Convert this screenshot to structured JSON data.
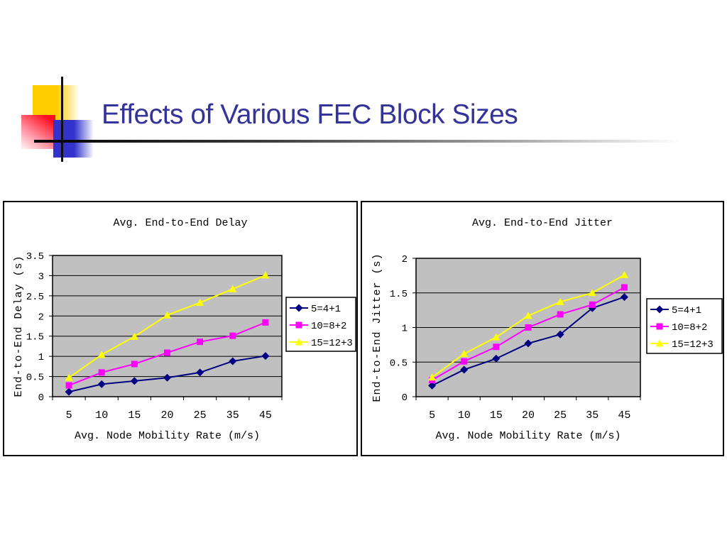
{
  "slide": {
    "title": "Effects of Various FEC Block Sizes",
    "title_color": "#333399"
  },
  "decoration": {
    "logo_yellow": "#FFCC00",
    "logo_red": "#FF1020",
    "logo_blue": "#3333CC",
    "rule_gradient_start": "#000000",
    "rule_gradient_end": "#ffffff"
  },
  "chart_data": [
    {
      "type": "line",
      "title": "Avg. End-to-End Delay",
      "xlabel": "Avg. Node Mobility Rate (m/s)",
      "ylabel": "End-to-End Delay (s)",
      "categories": [
        "5",
        "10",
        "15",
        "20",
        "25",
        "35",
        "45"
      ],
      "ylim": [
        0,
        3.5
      ],
      "yticks": [
        "0",
        "0.5",
        "1",
        "1.5",
        "2",
        "2.5",
        "3",
        "3.5"
      ],
      "grid": true,
      "plot_bg": "#C0C0C0",
      "legend_position": "right",
      "series": [
        {
          "name": "5=4+1",
          "color": "#000080",
          "marker": "diamond",
          "values": [
            0.12,
            0.31,
            0.39,
            0.47,
            0.6,
            0.88,
            1.01
          ]
        },
        {
          "name": "10=8+2",
          "color": "#FF00FF",
          "marker": "square",
          "values": [
            0.28,
            0.6,
            0.81,
            1.09,
            1.36,
            1.51,
            1.84
          ]
        },
        {
          "name": "15=12+3",
          "color": "#FFFF00",
          "marker": "triangle",
          "values": [
            0.47,
            1.04,
            1.49,
            2.02,
            2.33,
            2.67,
            3.01
          ]
        }
      ]
    },
    {
      "type": "line",
      "title": "Avg. End-to-End Jitter",
      "xlabel": "Avg. Node Mobility Rate (m/s)",
      "ylabel": "End-to-End Jitter (s)",
      "categories": [
        "5",
        "10",
        "15",
        "20",
        "25",
        "35",
        "45"
      ],
      "ylim": [
        0,
        2
      ],
      "yticks": [
        "0",
        "0.5",
        "1",
        "1.5",
        "2"
      ],
      "grid": true,
      "plot_bg": "#C0C0C0",
      "legend_position": "right",
      "series": [
        {
          "name": "5=4+1",
          "color": "#000080",
          "marker": "diamond",
          "values": [
            0.16,
            0.39,
            0.55,
            0.77,
            0.9,
            1.28,
            1.44
          ]
        },
        {
          "name": "10=8+2",
          "color": "#FF00FF",
          "marker": "square",
          "values": [
            0.24,
            0.51,
            0.72,
            1.0,
            1.19,
            1.33,
            1.58
          ]
        },
        {
          "name": "15=12+3",
          "color": "#FFFF00",
          "marker": "triangle",
          "values": [
            0.28,
            0.62,
            0.86,
            1.17,
            1.37,
            1.5,
            1.76
          ]
        }
      ]
    }
  ]
}
